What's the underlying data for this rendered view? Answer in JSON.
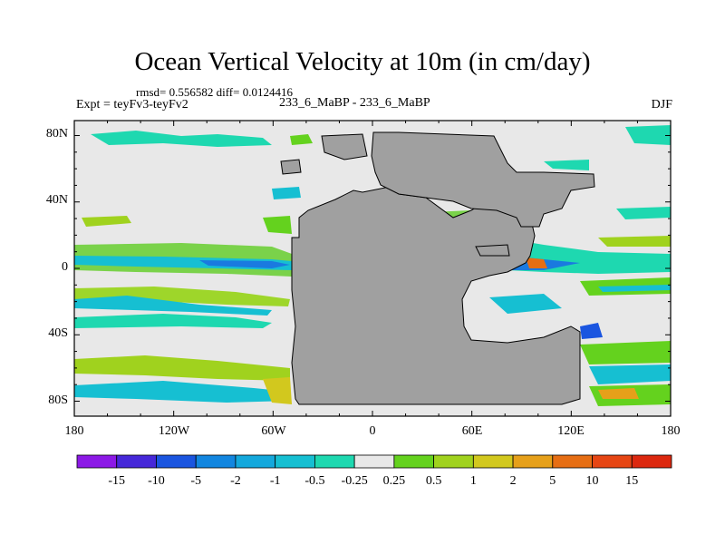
{
  "title": "Ocean Vertical Velocity at 10m (in cm/day)",
  "stats": "rmsd= 0.556582 diff= 0.0124416",
  "left_label": "Expt = teyFv3-teyFv2",
  "center_label": "233_6_MaBP - 233_6_MaBP",
  "right_label": "DJF",
  "lat_ticks": [
    "80N",
    "40N",
    "0",
    "40S",
    "80S"
  ],
  "lon_ticks": [
    "180",
    "120W",
    "60W",
    "0",
    "60E",
    "120E",
    "180"
  ],
  "colorbar": {
    "labels": [
      "-15",
      "-10",
      "-5",
      "-2",
      "-1",
      "-0.5",
      "-0.25",
      "0.25",
      "0.5",
      "1",
      "2",
      "5",
      "10",
      "15"
    ],
    "colors": [
      "#8c19e6",
      "#4628d9",
      "#1a55e0",
      "#1286e0",
      "#14a8dc",
      "#16bfd2",
      "#1ed8b0",
      "#e8e8e8",
      "#64d21e",
      "#a0d21e",
      "#d2c81e",
      "#e6a01a",
      "#e66e14",
      "#e64614",
      "#dc280f"
    ]
  },
  "colors": {
    "land": "#a0a0a0",
    "ocean_neutral": "#e8e8e8"
  }
}
